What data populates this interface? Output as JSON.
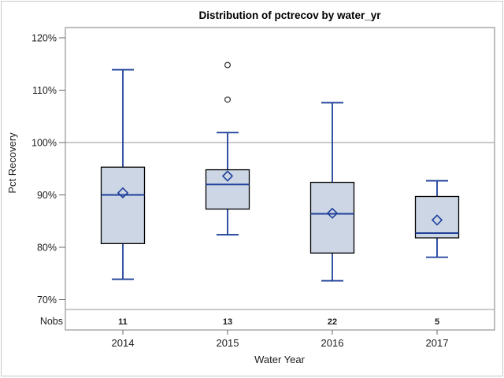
{
  "title": "Distribution of pctrecov by water_yr",
  "y_axis": {
    "label": "Pct Recovery",
    "tick_labels": [
      "120%",
      "110%",
      "100%",
      "90%",
      "80%",
      "70%"
    ],
    "tick_values": [
      120,
      110,
      100,
      90,
      80,
      70
    ]
  },
  "x_axis": {
    "label": "Water Year",
    "categories": [
      "2014",
      "2015",
      "2016",
      "2017"
    ]
  },
  "nobs_label": "Nobs",
  "colors": {
    "box_fill": "#ccd6e4",
    "box_border": "#000000",
    "whisker_blue": "#1e3f9a",
    "frame_gray": "#949494",
    "refline_gray": "#ababab",
    "tick_gray": "#696969",
    "outer_border": "#c8c8c8",
    "outlier_stroke": "#2b2b2b"
  },
  "chart_data": {
    "type": "box",
    "title": "Distribution of pctrecov by water_yr",
    "xlabel": "Water Year",
    "ylabel": "Pct Recovery",
    "categories": [
      "2014",
      "2015",
      "2016",
      "2017"
    ],
    "ylim": [
      68,
      122
    ],
    "y_tick_values": [
      70,
      80,
      90,
      100,
      110,
      120
    ],
    "reference_line": 100,
    "grid": "single horizontal reference line at 100%",
    "legend_position": "none",
    "nobs": [
      11,
      13,
      22,
      5
    ],
    "series": [
      {
        "category": "2014",
        "n": 11,
        "whisker_low": 73.9,
        "q1": 80.7,
        "median": 90.0,
        "q3": 95.3,
        "whisker_high": 113.9,
        "mean": 90.4,
        "outliers": []
      },
      {
        "category": "2015",
        "n": 13,
        "whisker_low": 82.4,
        "q1": 87.3,
        "median": 92.0,
        "q3": 94.8,
        "whisker_high": 101.9,
        "mean": 93.6,
        "outliers": [
          114.8,
          108.2
        ]
      },
      {
        "category": "2016",
        "n": 22,
        "whisker_low": 73.6,
        "q1": 78.9,
        "median": 86.4,
        "q3": 92.4,
        "whisker_high": 107.6,
        "mean": 86.5,
        "outliers": []
      },
      {
        "category": "2017",
        "n": 5,
        "whisker_low": 78.1,
        "q1": 81.8,
        "median": 82.7,
        "q3": 89.7,
        "whisker_high": 92.7,
        "mean": 85.2,
        "outliers": []
      }
    ]
  }
}
